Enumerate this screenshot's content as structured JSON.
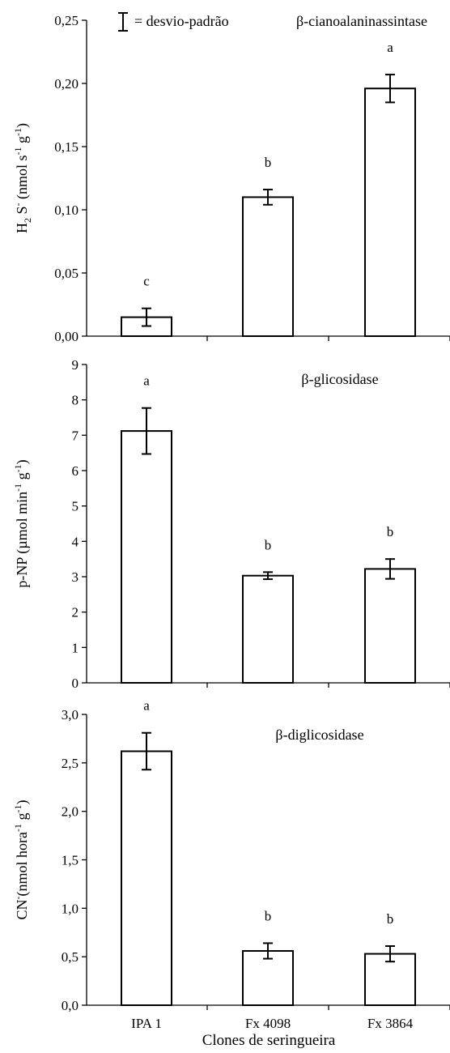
{
  "legend_label": "= desvio-padrão",
  "xlabel": "Clones de seringueira",
  "chart_data": [
    {
      "type": "bar",
      "title": "β-cianoalaninassintase",
      "ylabel_parts": [
        "H",
        "2",
        " S",
        "-",
        " (nmol s",
        "-1",
        " g",
        "-1",
        ")"
      ],
      "ylim": [
        0,
        0.25
      ],
      "yticks": [
        "0,00",
        "0,05",
        "0,10",
        "0,15",
        "0,20",
        "0,25"
      ],
      "categories": [
        "IPA 1",
        "Fx 4098",
        "Fx 3864"
      ],
      "values": [
        0.015,
        0.11,
        0.196
      ],
      "errors": [
        0.007,
        0.006,
        0.011
      ],
      "letters": [
        "c",
        "b",
        "a"
      ]
    },
    {
      "type": "bar",
      "title": "β-glicosidase",
      "ylabel_parts": [
        "p-NP (µmol min",
        "-1",
        " g",
        "-1",
        ")"
      ],
      "ylim": [
        0,
        9
      ],
      "yticks": [
        "0",
        "1",
        "2",
        "3",
        "4",
        "5",
        "6",
        "7",
        "8",
        "9"
      ],
      "categories": [
        "IPA 1",
        "Fx 4098",
        "Fx 3864"
      ],
      "values": [
        7.12,
        3.03,
        3.22
      ],
      "errors": [
        0.65,
        0.1,
        0.28
      ],
      "letters": [
        "a",
        "b",
        "b"
      ]
    },
    {
      "type": "bar",
      "title": "β-diglicosidase",
      "ylabel_parts": [
        "CN",
        "-",
        "(nmol hora",
        "-1",
        " g",
        "-1",
        ")"
      ],
      "ylim": [
        0,
        3
      ],
      "yticks": [
        "0,0",
        "0,5",
        "1,0",
        "1,5",
        "2,0",
        "2,5",
        "3,0"
      ],
      "categories": [
        "IPA 1",
        "Fx 4098",
        "Fx 3864"
      ],
      "values": [
        2.62,
        0.56,
        0.53
      ],
      "errors": [
        0.19,
        0.08,
        0.08
      ],
      "letters": [
        "a",
        "b",
        "b"
      ]
    }
  ]
}
